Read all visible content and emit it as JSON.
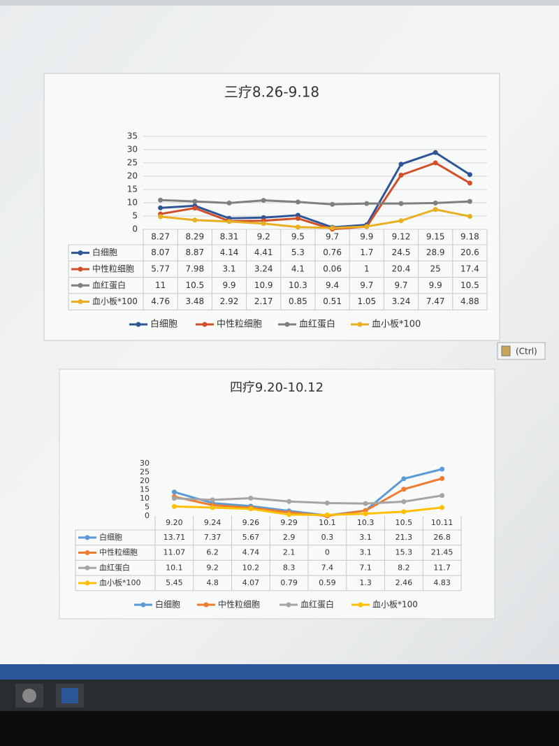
{
  "chart_data": [
    {
      "type": "line",
      "title": "三疗8.26-9.18",
      "categories": [
        "8.27",
        "8.29",
        "8.31",
        "9.2",
        "9.5",
        "9.7",
        "9.9",
        "9.12",
        "9.15",
        "9.18"
      ],
      "series": [
        {
          "name": "白细胞",
          "color": "#2f5597",
          "values": [
            8.07,
            8.87,
            4.14,
            4.41,
            5.3,
            0.76,
            1.7,
            24.5,
            28.9,
            20.6
          ]
        },
        {
          "name": "中性粒细胞",
          "color": "#d0502a",
          "values": [
            5.77,
            7.98,
            3.1,
            3.24,
            4.1,
            0.06,
            1,
            20.4,
            25,
            17.4
          ]
        },
        {
          "name": "血红蛋白",
          "color": "#7f7f7f",
          "values": [
            11,
            10.5,
            9.9,
            10.9,
            10.3,
            9.4,
            9.7,
            9.7,
            9.9,
            10.5
          ]
        },
        {
          "name": "血小板*100",
          "color": "#e8b020",
          "values": [
            4.76,
            3.48,
            2.92,
            2.17,
            0.85,
            0.51,
            1.05,
            3.24,
            7.47,
            4.88
          ]
        }
      ],
      "ylim": [
        0,
        35
      ],
      "yticks": [
        0,
        5,
        10,
        15,
        20,
        25,
        30,
        35
      ],
      "grid": true,
      "data_table": true,
      "legend": "bottom"
    },
    {
      "type": "line",
      "title": "四疗9.20-10.12",
      "categories": [
        "9.20",
        "9.24",
        "9.26",
        "9.29",
        "10.1",
        "10.3",
        "10.5",
        "10.11"
      ],
      "series": [
        {
          "name": "白细胞",
          "color": "#5b9bd5",
          "values": [
            13.71,
            7.37,
            5.67,
            2.9,
            0.3,
            3.1,
            21.3,
            26.8
          ]
        },
        {
          "name": "中性粒细胞",
          "color": "#ed7d31",
          "values": [
            11.07,
            6.2,
            4.74,
            2.1,
            0,
            3.1,
            15.3,
            21.45
          ]
        },
        {
          "name": "血红蛋白",
          "color": "#a5a5a5",
          "values": [
            10.1,
            9.2,
            10.2,
            8.3,
            7.4,
            7.1,
            8.2,
            11.7
          ]
        },
        {
          "name": "血小板*100",
          "color": "#ffc000",
          "values": [
            5.45,
            4.8,
            4.07,
            0.79,
            0.59,
            1.3,
            2.46,
            4.83
          ]
        }
      ],
      "ylim": [
        0,
        30
      ],
      "yticks": [
        0,
        5,
        10,
        15,
        20,
        25,
        30
      ],
      "grid": false,
      "data_table": true,
      "legend": "bottom"
    }
  ],
  "paste_options": "(Ctrl)"
}
